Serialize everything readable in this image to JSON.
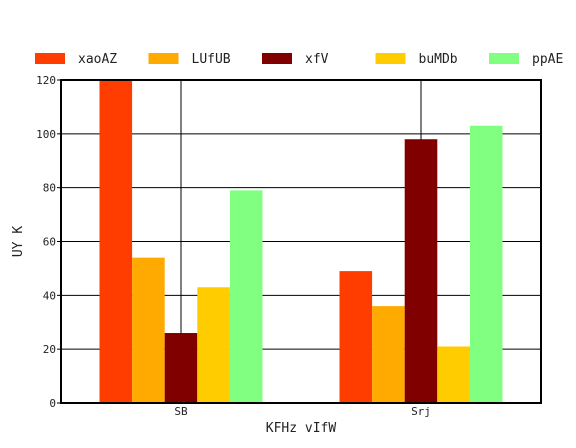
{
  "chart_data": {
    "type": "bar",
    "categories": [
      "SB",
      "Srj"
    ],
    "series": [
      {
        "name": "xaoAZ",
        "color": "#ff3d00",
        "values": [
          120,
          49
        ]
      },
      {
        "name": "LUfUB",
        "color": "#ffaa00",
        "values": [
          54,
          36
        ]
      },
      {
        "name": "xfV",
        "color": "#800000",
        "values": [
          26,
          98
        ]
      },
      {
        "name": "buMDb",
        "color": "#ffcc00",
        "values": [
          43,
          21
        ]
      },
      {
        "name": "ppAE",
        "color": "#80ff80",
        "values": [
          79,
          103
        ]
      }
    ],
    "xlabel": "KFHz vIfW",
    "ylabel": "UY K",
    "ylim": [
      0,
      120
    ],
    "yticks": [
      0,
      20,
      40,
      60,
      80,
      100,
      120
    ],
    "grid": true,
    "legend": "top"
  }
}
